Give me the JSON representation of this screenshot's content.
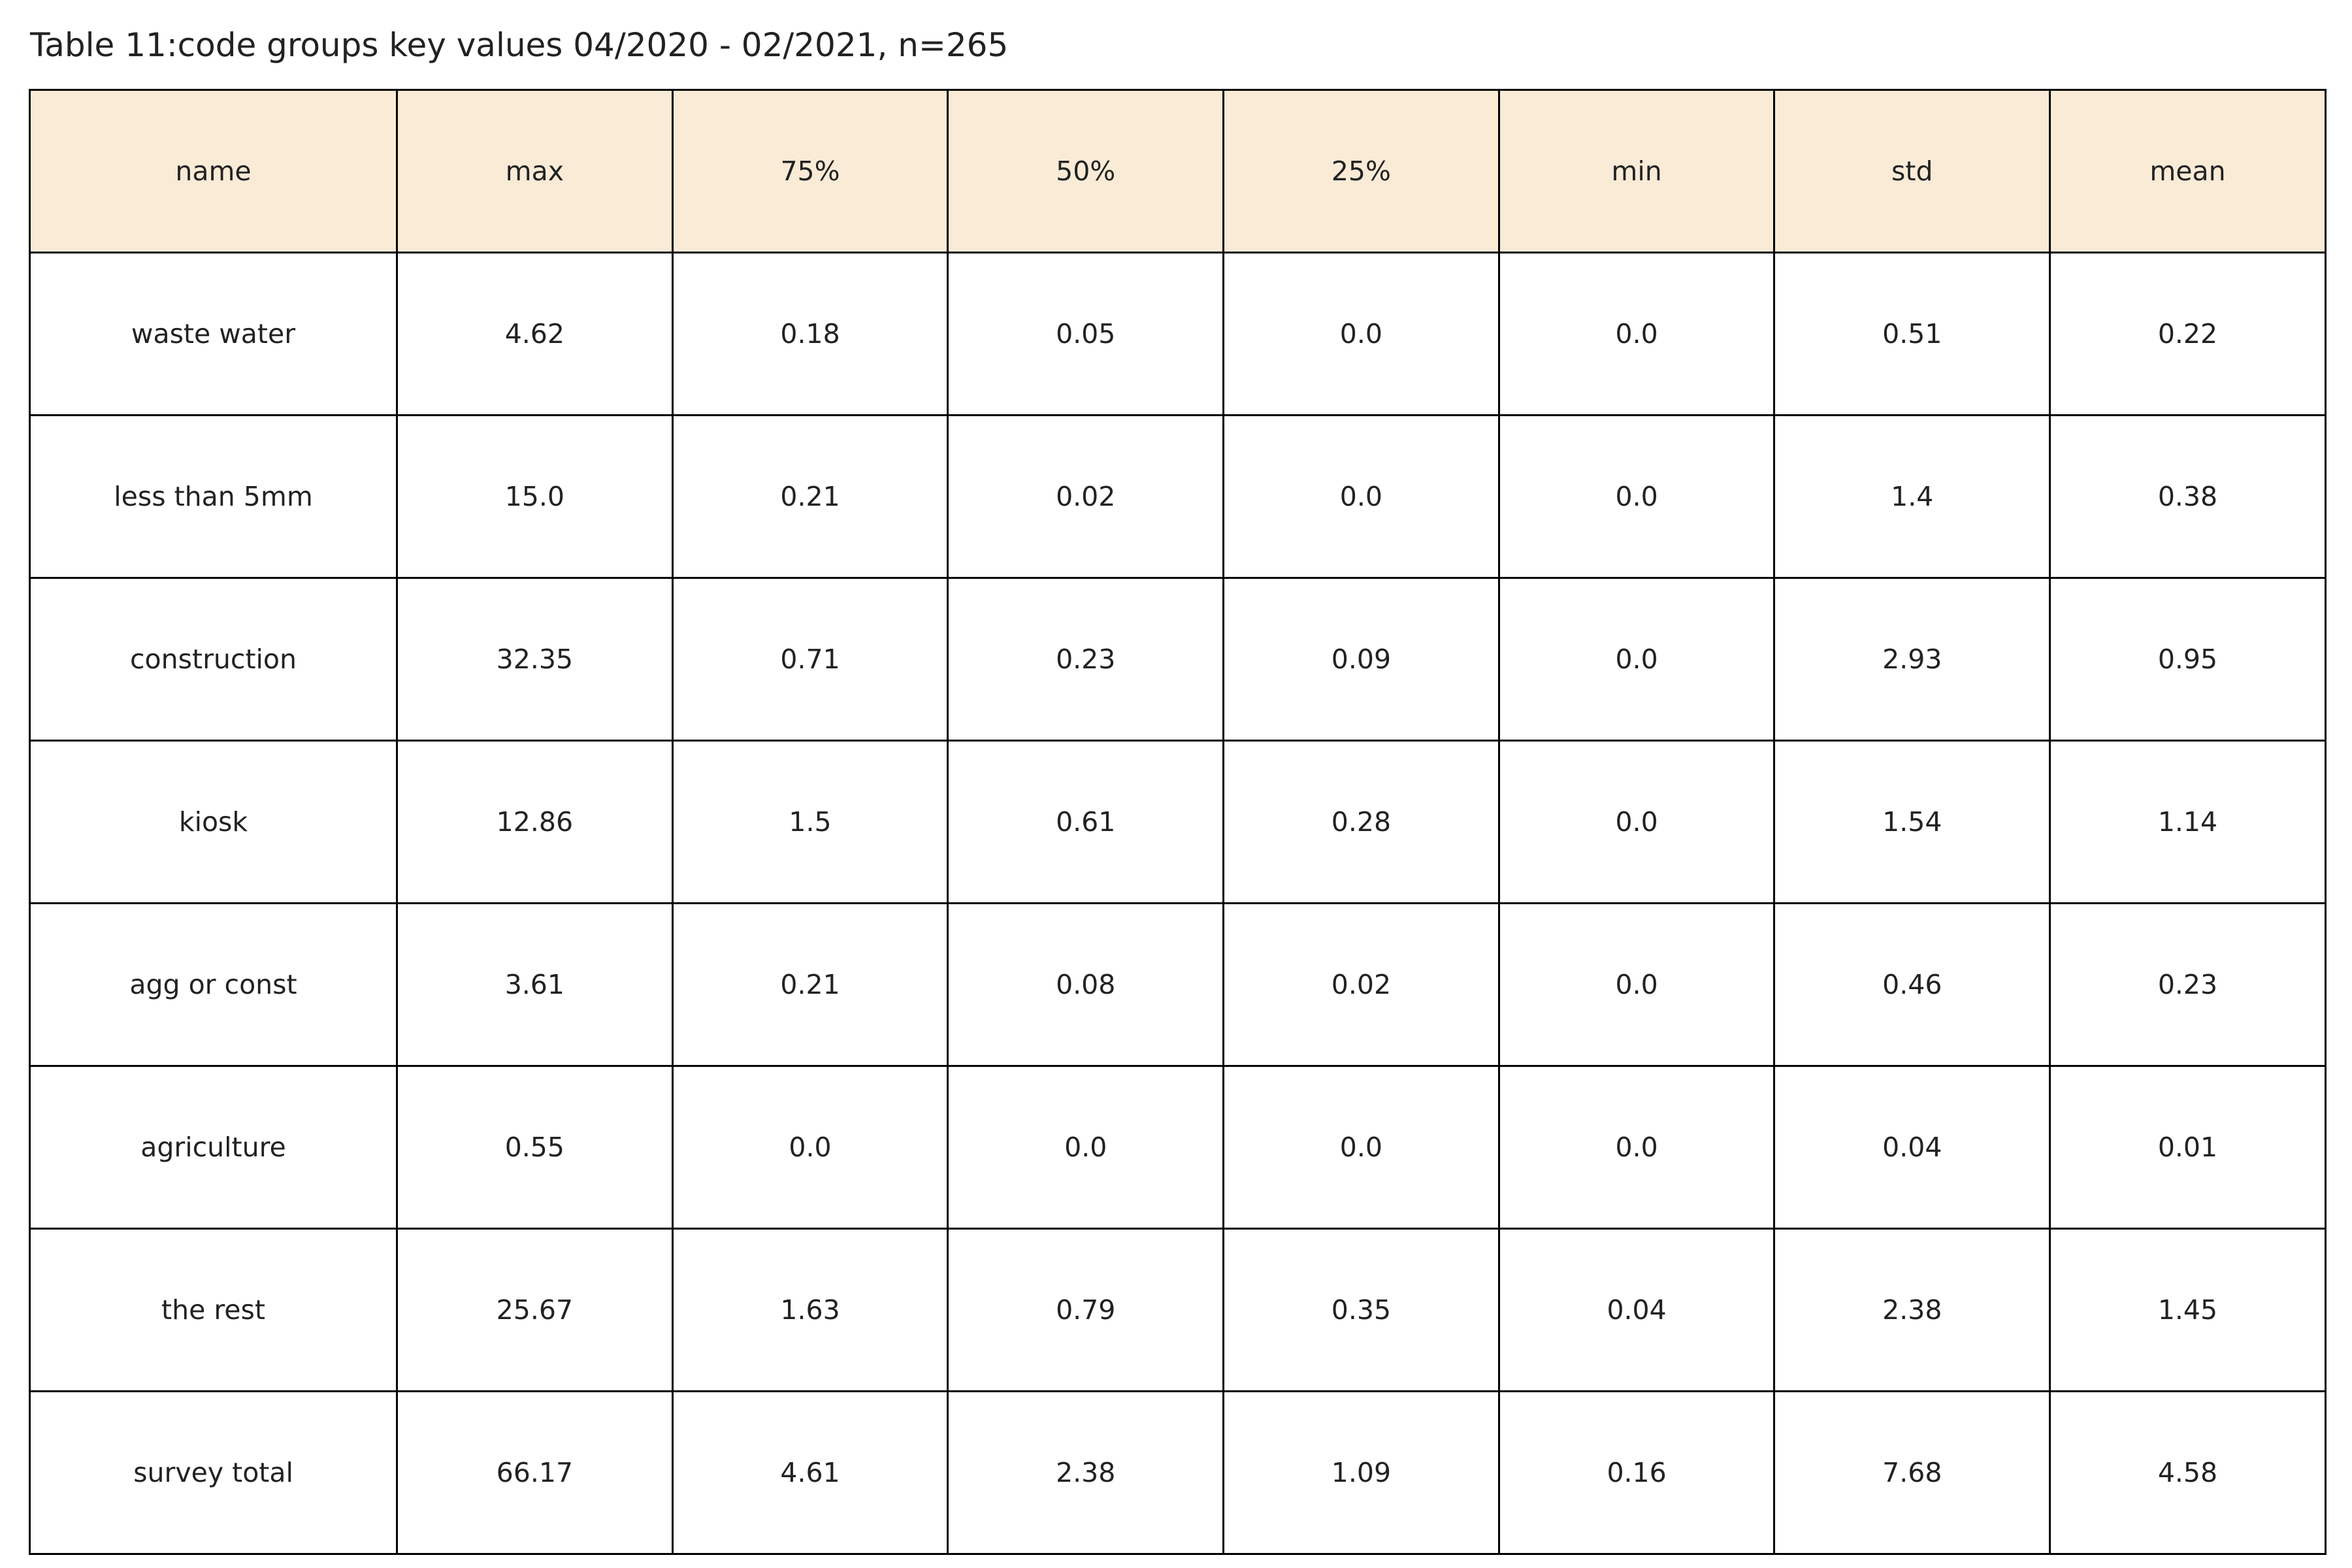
{
  "title": "Table 11:code groups key values 04/2020 - 02/2021, n=265",
  "colors": {
    "header_background": "#faebd7",
    "border": "#000000",
    "text": "#222222"
  },
  "chart_data": {
    "type": "table",
    "title": "Table 11:code groups key values 04/2020 - 02/2021, n=265",
    "columns": [
      "name",
      "max",
      "75%",
      "50%",
      "25%",
      "min",
      "std",
      "mean"
    ],
    "rows": [
      [
        "waste water",
        "4.62",
        "0.18",
        "0.05",
        "0.0",
        "0.0",
        "0.51",
        "0.22"
      ],
      [
        "less than 5mm",
        "15.0",
        "0.21",
        "0.02",
        "0.0",
        "0.0",
        "1.4",
        "0.38"
      ],
      [
        "construction",
        "32.35",
        "0.71",
        "0.23",
        "0.09",
        "0.0",
        "2.93",
        "0.95"
      ],
      [
        "kiosk",
        "12.86",
        "1.5",
        "0.61",
        "0.28",
        "0.0",
        "1.54",
        "1.14"
      ],
      [
        "agg or const",
        "3.61",
        "0.21",
        "0.08",
        "0.02",
        "0.0",
        "0.46",
        "0.23"
      ],
      [
        "agriculture",
        "0.55",
        "0.0",
        "0.0",
        "0.0",
        "0.0",
        "0.04",
        "0.01"
      ],
      [
        "the rest",
        "25.67",
        "1.63",
        "0.79",
        "0.35",
        "0.04",
        "2.38",
        "1.45"
      ],
      [
        "survey total",
        "66.17",
        "4.61",
        "2.38",
        "1.09",
        "0.16",
        "7.68",
        "4.58"
      ]
    ]
  }
}
